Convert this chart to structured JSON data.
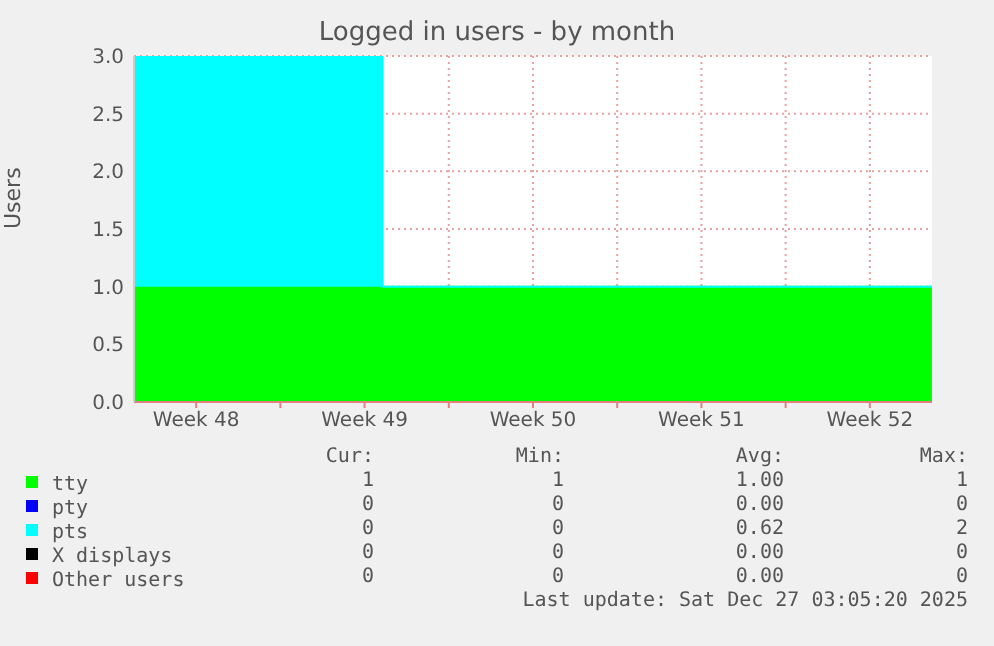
{
  "chart_data": {
    "type": "area",
    "title": "Logged in users - by month",
    "ylabel": "Users",
    "stacked": true,
    "x": [
      "2025-11-24T22:00",
      "2025-12-05T06:00",
      "2025-12-05T06:00",
      "2025-12-28T02:00"
    ],
    "series": [
      {
        "name": "tty",
        "color": "#00ff00",
        "values": [
          1,
          1,
          1,
          1
        ]
      },
      {
        "name": "pty",
        "color": "#0000ff",
        "values": [
          null,
          null,
          null,
          null
        ]
      },
      {
        "name": "pts",
        "color": "#00ffff",
        "values": [
          2,
          2,
          0,
          0
        ]
      },
      {
        "name": "X displays",
        "color": "#000000",
        "values": [
          null,
          null,
          null,
          null
        ]
      },
      {
        "name": "Other users",
        "color": "#ff0000",
        "values": [
          null,
          null,
          null,
          null
        ]
      }
    ],
    "xlim": [
      "2025-11-24T22:00",
      "2025-12-28T02:00"
    ],
    "xticks": [
      {
        "value": "2025-11-27T12:00",
        "label": "Week 48"
      },
      {
        "value": "2025-12-01",
        "label": null
      },
      {
        "value": "2025-12-04T12:00",
        "label": "Week 49"
      },
      {
        "value": "2025-12-08",
        "label": null
      },
      {
        "value": "2025-12-11T12:00",
        "label": "Week 50"
      },
      {
        "value": "2025-12-15",
        "label": null
      },
      {
        "value": "2025-12-18T12:00",
        "label": "Week 51"
      },
      {
        "value": "2025-12-22",
        "label": null
      },
      {
        "value": "2025-12-25T12:00",
        "label": "Week 52"
      }
    ],
    "ylim": [
      0,
      3
    ],
    "yticks": [
      {
        "value": 0,
        "label": "0.0"
      },
      {
        "value": 0.5,
        "label": "0.5"
      },
      {
        "value": 1,
        "label": "1.0"
      },
      {
        "value": 1.5,
        "label": "1.5"
      },
      {
        "value": 2,
        "label": "2.0"
      },
      {
        "value": 2.5,
        "label": "2.5"
      },
      {
        "value": 3,
        "label": "3.0"
      }
    ],
    "grid": true,
    "legend": "bottom",
    "annotations": [
      "Cur:",
      "Min:",
      "Avg:",
      "Max:",
      "1",
      "1",
      "1.00",
      "1",
      "0",
      "0",
      "0.00",
      "0",
      "0",
      "0",
      "0.62",
      "2",
      "0",
      "0",
      "0.00",
      "0",
      "0",
      "0",
      "0.00",
      "0",
      "Last update: Sat Dec 27 03:05:20 2025"
    ]
  }
}
